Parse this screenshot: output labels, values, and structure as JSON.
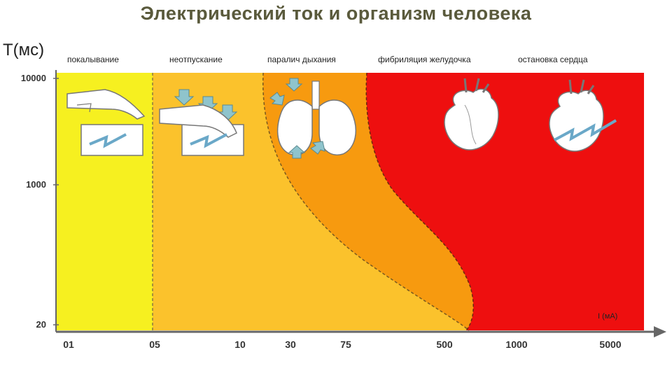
{
  "title": "Электрический ток и организм человека",
  "y_axis": {
    "label": "Т(мс)",
    "ticks": [
      "10000",
      "1000",
      "20"
    ]
  },
  "x_axis": {
    "unit_label": "I (мА)",
    "ticks": [
      "01",
      "05",
      "10",
      "30",
      "75",
      "500",
      "1000",
      "5000"
    ]
  },
  "zones": [
    {
      "label": "покалывание",
      "color": "#f6f020"
    },
    {
      "label": "неотпускание",
      "color": "#fbc22c"
    },
    {
      "label": "паралич дыхания",
      "color": "#f79a0f"
    },
    {
      "label": "фибриляция желудочка",
      "color": "#ee0f0f"
    },
    {
      "label": "остановка сердца",
      "color": "#ee0f0f"
    }
  ],
  "icons": [
    "hand-touch-icon",
    "hand-grip-icon",
    "lungs-icon",
    "heart-icon",
    "heart-shock-icon"
  ]
}
